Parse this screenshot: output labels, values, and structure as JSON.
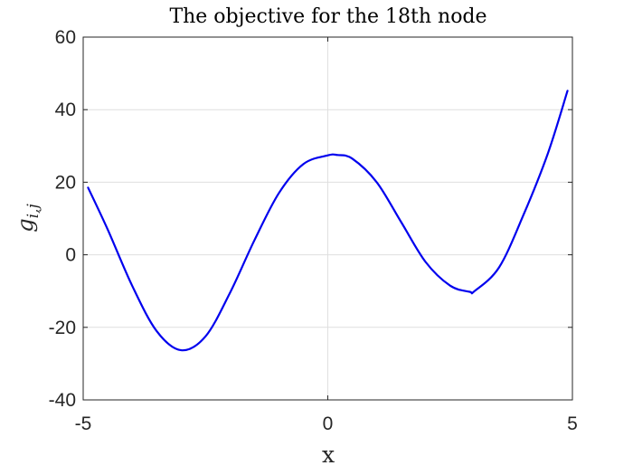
{
  "chart_data": {
    "type": "line",
    "title": "The objective for the 18th node",
    "xlabel": "x",
    "ylabel": "g_{i,j}",
    "ylabel_parts": {
      "base": "g",
      "sub": "i,j"
    },
    "xlim": [
      -5,
      5
    ],
    "ylim": [
      -40,
      60
    ],
    "xticks": [
      -5,
      0,
      5
    ],
    "yticks": [
      -40,
      -20,
      0,
      20,
      40,
      60
    ],
    "xtick_labels": [
      "-5",
      "0",
      "5"
    ],
    "ytick_labels": [
      "-40",
      "-20",
      "0",
      "20",
      "40",
      "60"
    ],
    "grid": true,
    "series": [
      {
        "color": "#0000ee",
        "x": [
          -4.9,
          -4.5,
          -4.0,
          -3.5,
          -3.0,
          -2.5,
          -2.0,
          -1.5,
          -1.0,
          -0.5,
          0.0,
          0.2,
          0.5,
          1.0,
          1.5,
          2.0,
          2.5,
          2.9,
          3.0,
          3.5,
          4.0,
          4.5,
          4.9
        ],
        "y": [
          18.5,
          7.0,
          -8.5,
          -21.0,
          -26.3,
          -22.5,
          -10.5,
          4.0,
          17.0,
          25.0,
          27.4,
          27.5,
          26.5,
          20.0,
          9.0,
          -2.0,
          -8.5,
          -10.2,
          -10.0,
          -3.5,
          11.0,
          28.0,
          45.2
        ]
      }
    ]
  }
}
